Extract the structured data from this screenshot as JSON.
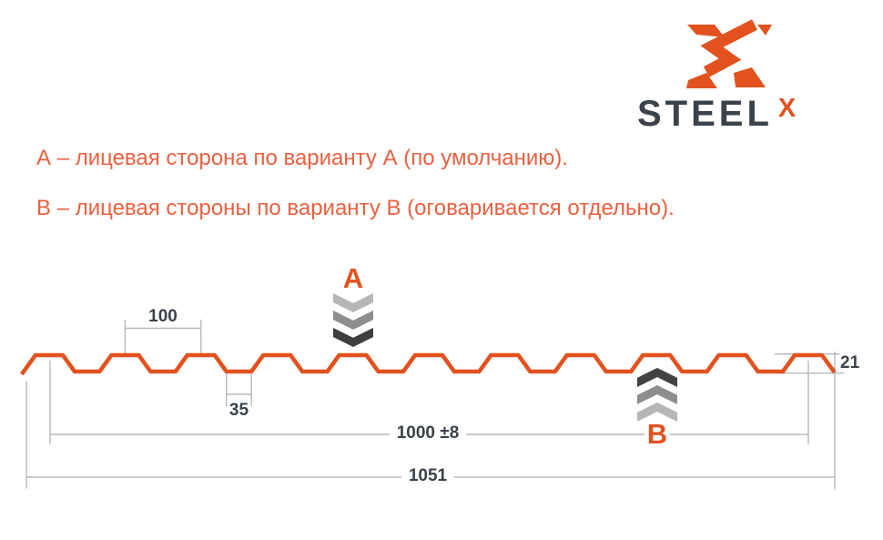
{
  "colors": {
    "orange": "#e2521f",
    "note_orange": "#ea6140",
    "dark_text": "#3c424a",
    "dim_line": "#b9b9b9"
  },
  "logo": {
    "wordmark": "STEEL",
    "sup": "X",
    "icon": "steelx-knot-icon"
  },
  "notes": [
    "А – лицевая сторона по варианту А (по умолчанию).",
    "В – лицевая стороны по варианту В (оговаривается отдельно)."
  ],
  "markers": {
    "a": {
      "label": "А",
      "direction": "down",
      "chevron_colors": [
        "#b6b6b6",
        "#8e8e8e",
        "#3e3e3e"
      ]
    },
    "b": {
      "label": "В",
      "direction": "up",
      "chevron_colors": [
        "#424242",
        "#8e8e8e",
        "#b6b6b6"
      ]
    }
  },
  "dimensions": {
    "pitch": "100",
    "valley_width": "35",
    "profile_height": "21",
    "working_width": "1000 ±8",
    "overall_width": "1051"
  },
  "profile": {
    "type": "trapezoidal-corrugated-sheet",
    "ribs": 11,
    "unit": "mm"
  }
}
